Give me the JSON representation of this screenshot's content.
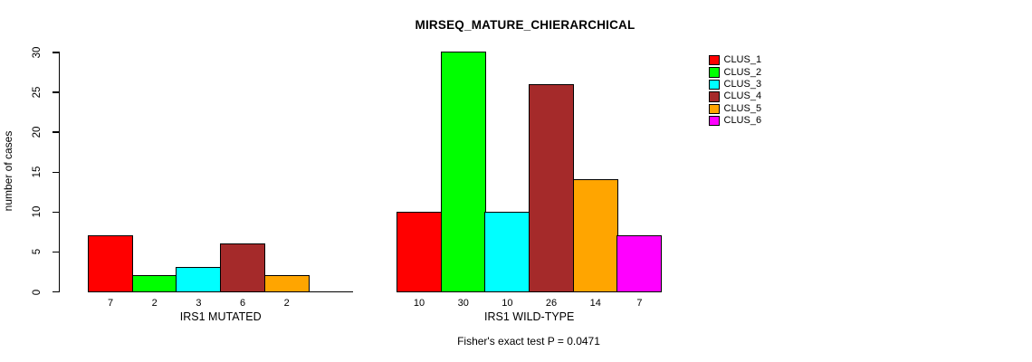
{
  "title": "MIRSEQ_MATURE_CHIERARCHICAL",
  "chart_data": {
    "type": "bar",
    "title": "MIRSEQ_MATURE_CHIERARCHICAL",
    "ylabel": "number of cases",
    "xlabel": "",
    "ylim": [
      0,
      30
    ],
    "yticks": [
      0,
      5,
      10,
      15,
      20,
      25,
      30
    ],
    "grid": false,
    "legend_position": "top-right",
    "categories": [
      "IRS1 MUTATED",
      "IRS1 WILD-TYPE"
    ],
    "series": [
      {
        "name": "CLUS_1",
        "color": "#FF0000",
        "values": [
          7,
          10
        ]
      },
      {
        "name": "CLUS_2",
        "color": "#00FF00",
        "values": [
          2,
          30
        ]
      },
      {
        "name": "CLUS_3",
        "color": "#00FFFF",
        "values": [
          3,
          10
        ]
      },
      {
        "name": "CLUS_4",
        "color": "#A52A2A",
        "values": [
          6,
          26
        ]
      },
      {
        "name": "CLUS_5",
        "color": "#FFA500",
        "values": [
          2,
          14
        ]
      },
      {
        "name": "CLUS_6",
        "color": "#FF00FF",
        "values": [
          0,
          7
        ]
      }
    ],
    "bar_value_labels": [
      [
        "7",
        "2",
        "3",
        "6",
        "2",
        ""
      ],
      [
        "10",
        "30",
        "10",
        "26",
        "14",
        "7"
      ]
    ],
    "annotation": "Fisher's exact test P = 0.0471",
    "axis_color": "#000000",
    "bar_border_color": "#000000",
    "background_color": "#FFFFFF"
  }
}
